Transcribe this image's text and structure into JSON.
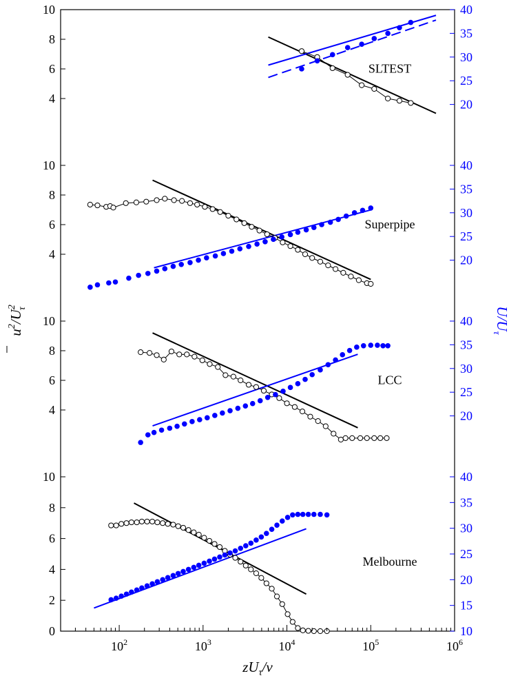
{
  "chart_data": {
    "type": "line",
    "xlabel_main": "zU",
    "xlabel_sub": "τ",
    "xlabel_tail": "/ν",
    "ylabel_left_main": "u",
    "ylabel_left_sup": "2",
    "ylabel_left_div": "/U",
    "ylabel_left_div_sup": "2",
    "ylabel_left_sub": "τ",
    "ylabel_right_main": "U/U",
    "ylabel_right_sub": "τ",
    "x_scale": "log",
    "xlim": [
      20,
      1000000
    ],
    "xticks": [
      {
        "value": 100,
        "base": "10",
        "exp": "2"
      },
      {
        "value": 1000,
        "base": "10",
        "exp": "3"
      },
      {
        "value": 10000,
        "base": "10",
        "exp": "4"
      },
      {
        "value": 100000,
        "base": "10",
        "exp": "5"
      },
      {
        "value": 1000000,
        "base": "10",
        "exp": "6"
      }
    ],
    "colors": {
      "left_axis": "#000000",
      "right_axis": "#0000ff",
      "uu_series": "#000000",
      "U_series": "#0000ff"
    },
    "panels": [
      {
        "label": "SLTEST",
        "left_ylim": [
          2,
          10
        ],
        "left_ticks": [
          "4",
          "6",
          "8",
          "10"
        ],
        "right_ylim": [
          15,
          40
        ],
        "right_ticks": [
          "20",
          "25",
          "30",
          "35",
          "40"
        ],
        "uu_points": [
          [
            15000,
            7.2
          ],
          [
            23000,
            6.8
          ],
          [
            35000,
            6.05
          ],
          [
            53000,
            5.6
          ],
          [
            78000,
            4.9
          ],
          [
            110000,
            4.65
          ],
          [
            160000,
            4.0
          ],
          [
            220000,
            3.85
          ],
          [
            300000,
            3.7
          ]
        ],
        "uu_fit": [
          [
            6000,
            8.15
          ],
          [
            600000,
            3.0
          ]
        ],
        "U_points": [
          [
            15000,
            27.5
          ],
          [
            23000,
            29.2
          ],
          [
            35000,
            30.5
          ],
          [
            53000,
            32.0
          ],
          [
            78000,
            32.7
          ],
          [
            110000,
            33.9
          ],
          [
            160000,
            35.0
          ],
          [
            220000,
            36.2
          ],
          [
            300000,
            37.3
          ]
        ],
        "U_fit": [
          [
            6000,
            28.3
          ],
          [
            600000,
            38.8
          ]
        ],
        "U_fit_dashed": [
          [
            6000,
            25.7
          ],
          [
            600000,
            37.8
          ]
        ]
      },
      {
        "label": "Superpipe",
        "left_ylim": [
          2,
          10
        ],
        "left_ticks": [
          "4",
          "6",
          "8",
          "10"
        ],
        "right_ylim": [
          15,
          40
        ],
        "right_ticks": [
          "20",
          "25",
          "30",
          "35",
          "40"
        ],
        "uu_points": [
          [
            45,
            7.35
          ],
          [
            55,
            7.3
          ],
          [
            70,
            7.2
          ],
          [
            78,
            7.25
          ],
          [
            85,
            7.15
          ],
          [
            120,
            7.45
          ],
          [
            160,
            7.5
          ],
          [
            210,
            7.55
          ],
          [
            280,
            7.65
          ],
          [
            350,
            7.75
          ],
          [
            450,
            7.65
          ],
          [
            560,
            7.6
          ],
          [
            700,
            7.45
          ],
          [
            850,
            7.35
          ],
          [
            1050,
            7.2
          ],
          [
            1300,
            7.05
          ],
          [
            1600,
            6.85
          ],
          [
            2000,
            6.6
          ],
          [
            2500,
            6.35
          ],
          [
            3100,
            6.1
          ],
          [
            3800,
            5.85
          ],
          [
            4700,
            5.6
          ],
          [
            5800,
            5.35
          ],
          [
            7200,
            5.1
          ],
          [
            8900,
            4.8
          ],
          [
            11000,
            4.55
          ],
          [
            13500,
            4.3
          ],
          [
            16500,
            4.0
          ],
          [
            20000,
            3.75
          ],
          [
            25000,
            3.5
          ],
          [
            31000,
            3.25
          ],
          [
            38000,
            3.0
          ],
          [
            47000,
            2.75
          ],
          [
            58000,
            2.5
          ],
          [
            72000,
            2.25
          ],
          [
            90000,
            2.05
          ],
          [
            100000,
            2.0
          ]
        ],
        "uu_fit": [
          [
            250,
            9.0
          ],
          [
            100000,
            2.3
          ]
        ],
        "U_points": [
          [
            45,
            14.3
          ],
          [
            55,
            14.8
          ],
          [
            75,
            15.2
          ],
          [
            90,
            15.4
          ],
          [
            130,
            16.2
          ],
          [
            170,
            16.8
          ],
          [
            220,
            17.2
          ],
          [
            280,
            17.7
          ],
          [
            350,
            18.2
          ],
          [
            440,
            18.7
          ],
          [
            550,
            19.1
          ],
          [
            700,
            19.5
          ],
          [
            880,
            20.0
          ],
          [
            1100,
            20.5
          ],
          [
            1400,
            20.9
          ],
          [
            1750,
            21.4
          ],
          [
            2200,
            21.9
          ],
          [
            2750,
            22.4
          ],
          [
            3500,
            22.9
          ],
          [
            4400,
            23.4
          ],
          [
            5500,
            23.9
          ],
          [
            6900,
            24.4
          ],
          [
            8700,
            24.9
          ],
          [
            11000,
            25.4
          ],
          [
            13500,
            25.9
          ],
          [
            17000,
            26.4
          ],
          [
            21000,
            26.9
          ],
          [
            26000,
            27.5
          ],
          [
            33000,
            28.0
          ],
          [
            41000,
            28.6
          ],
          [
            51000,
            29.3
          ],
          [
            64000,
            30.0
          ],
          [
            80000,
            30.5
          ],
          [
            100000,
            31.0
          ]
        ],
        "U_fit": [
          [
            260,
            18.4
          ],
          [
            100000,
            30.6
          ]
        ]
      },
      {
        "label": "LCC",
        "left_ylim": [
          2,
          10
        ],
        "left_ticks": [
          "4",
          "6",
          "8",
          "10"
        ],
        "right_ylim": [
          15,
          40
        ],
        "right_ticks": [
          "20",
          "25",
          "30",
          "35",
          "40"
        ],
        "uu_points": [
          [
            180,
            7.9
          ],
          [
            230,
            7.85
          ],
          [
            280,
            7.7
          ],
          [
            340,
            7.4
          ],
          [
            420,
            7.95
          ],
          [
            520,
            7.75
          ],
          [
            640,
            7.75
          ],
          [
            790,
            7.6
          ],
          [
            980,
            7.35
          ],
          [
            1200,
            7.1
          ],
          [
            1500,
            6.9
          ],
          [
            1850,
            6.35
          ],
          [
            2300,
            6.25
          ],
          [
            2800,
            6.0
          ],
          [
            3500,
            5.7
          ],
          [
            4300,
            5.55
          ],
          [
            5300,
            5.3
          ],
          [
            6600,
            5.05
          ],
          [
            8100,
            4.8
          ],
          [
            10000,
            4.45
          ],
          [
            12400,
            4.2
          ],
          [
            15300,
            3.9
          ],
          [
            19000,
            3.55
          ],
          [
            23500,
            3.25
          ],
          [
            29000,
            2.9
          ],
          [
            36000,
            2.4
          ],
          [
            44000,
            2.0
          ],
          [
            50000,
            2.1
          ],
          [
            60000,
            2.1
          ],
          [
            75000,
            2.1
          ],
          [
            90000,
            2.1
          ],
          [
            110000,
            2.1
          ],
          [
            130000,
            2.1
          ],
          [
            155000,
            2.1
          ]
        ],
        "uu_fit": [
          [
            250,
            9.2
          ],
          [
            70000,
            2.8
          ]
        ],
        "U_points": [
          [
            180,
            14.4
          ],
          [
            220,
            16.0
          ],
          [
            260,
            16.5
          ],
          [
            320,
            17.0
          ],
          [
            400,
            17.4
          ],
          [
            490,
            17.8
          ],
          [
            600,
            18.3
          ],
          [
            740,
            18.8
          ],
          [
            910,
            19.2
          ],
          [
            1120,
            19.6
          ],
          [
            1380,
            20.1
          ],
          [
            1700,
            20.6
          ],
          [
            2100,
            21.1
          ],
          [
            2600,
            21.6
          ],
          [
            3200,
            22.1
          ],
          [
            3900,
            22.6
          ],
          [
            4800,
            23.2
          ],
          [
            5900,
            23.9
          ],
          [
            7300,
            24.5
          ],
          [
            9000,
            25.2
          ],
          [
            11000,
            26.0
          ],
          [
            13500,
            26.8
          ],
          [
            16500,
            27.7
          ],
          [
            20000,
            28.7
          ],
          [
            25000,
            29.7
          ],
          [
            31000,
            30.8
          ],
          [
            38000,
            31.8
          ],
          [
            46000,
            32.9
          ],
          [
            56000,
            33.8
          ],
          [
            68000,
            34.5
          ],
          [
            82000,
            34.8
          ],
          [
            100000,
            34.9
          ],
          [
            120000,
            34.9
          ],
          [
            140000,
            34.8
          ],
          [
            160000,
            34.8
          ]
        ],
        "U_fit": [
          [
            250,
            17.9
          ],
          [
            70000,
            33.0
          ]
        ]
      },
      {
        "label": "Melbourne",
        "left_ylim": [
          0,
          10
        ],
        "left_ticks": [
          "0",
          "2",
          "4",
          "6",
          "8",
          "10"
        ],
        "right_ylim": [
          10,
          40
        ],
        "right_ticks": [
          "10",
          "15",
          "20",
          "25",
          "30",
          "35",
          "40"
        ],
        "uu_points": [
          [
            80,
            6.85
          ],
          [
            92,
            6.85
          ],
          [
            106,
            6.95
          ],
          [
            122,
            7.0
          ],
          [
            140,
            7.05
          ],
          [
            162,
            7.05
          ],
          [
            186,
            7.1
          ],
          [
            215,
            7.1
          ],
          [
            248,
            7.1
          ],
          [
            285,
            7.05
          ],
          [
            330,
            7.0
          ],
          [
            380,
            6.95
          ],
          [
            440,
            6.9
          ],
          [
            505,
            6.8
          ],
          [
            580,
            6.7
          ],
          [
            670,
            6.55
          ],
          [
            775,
            6.4
          ],
          [
            890,
            6.25
          ],
          [
            1030,
            6.05
          ],
          [
            1190,
            5.85
          ],
          [
            1370,
            5.65
          ],
          [
            1580,
            5.45
          ],
          [
            1820,
            5.2
          ],
          [
            2100,
            4.95
          ],
          [
            2420,
            4.75
          ],
          [
            2800,
            4.5
          ],
          [
            3230,
            4.25
          ],
          [
            3720,
            4.0
          ],
          [
            4300,
            3.75
          ],
          [
            4950,
            3.45
          ],
          [
            5700,
            3.1
          ],
          [
            6600,
            2.75
          ],
          [
            7600,
            2.25
          ],
          [
            8800,
            1.75
          ],
          [
            10200,
            1.1
          ],
          [
            11700,
            0.6
          ],
          [
            13500,
            0.2
          ],
          [
            15500,
            0.05
          ],
          [
            18000,
            0.02
          ],
          [
            21000,
            0.0
          ],
          [
            25000,
            0.0
          ],
          [
            30000,
            0.0
          ]
        ],
        "uu_fit": [
          [
            150,
            8.3
          ],
          [
            17000,
            2.4
          ]
        ],
        "U_points": [
          [
            80,
            16.1
          ],
          [
            92,
            16.4
          ],
          [
            106,
            16.8
          ],
          [
            122,
            17.2
          ],
          [
            140,
            17.6
          ],
          [
            162,
            18.0
          ],
          [
            186,
            18.4
          ],
          [
            215,
            18.8
          ],
          [
            248,
            19.2
          ],
          [
            285,
            19.6
          ],
          [
            330,
            20.0
          ],
          [
            380,
            20.4
          ],
          [
            440,
            20.8
          ],
          [
            505,
            21.2
          ],
          [
            580,
            21.6
          ],
          [
            670,
            22.0
          ],
          [
            775,
            22.4
          ],
          [
            890,
            22.8
          ],
          [
            1030,
            23.2
          ],
          [
            1190,
            23.6
          ],
          [
            1370,
            24.0
          ],
          [
            1580,
            24.4
          ],
          [
            1820,
            24.8
          ],
          [
            2100,
            25.2
          ],
          [
            2420,
            25.6
          ],
          [
            2800,
            26.1
          ],
          [
            3230,
            26.6
          ],
          [
            3720,
            27.1
          ],
          [
            4300,
            27.7
          ],
          [
            4950,
            28.3
          ],
          [
            5700,
            29.0
          ],
          [
            6600,
            29.8
          ],
          [
            7600,
            30.6
          ],
          [
            8800,
            31.4
          ],
          [
            10200,
            32.1
          ],
          [
            11700,
            32.6
          ],
          [
            13500,
            32.7
          ],
          [
            15500,
            32.7
          ],
          [
            18000,
            32.7
          ],
          [
            21000,
            32.7
          ],
          [
            25000,
            32.7
          ],
          [
            30000,
            32.6
          ]
        ],
        "U_fit": [
          [
            50,
            14.5
          ],
          [
            17000,
            29.9
          ]
        ]
      }
    ]
  }
}
